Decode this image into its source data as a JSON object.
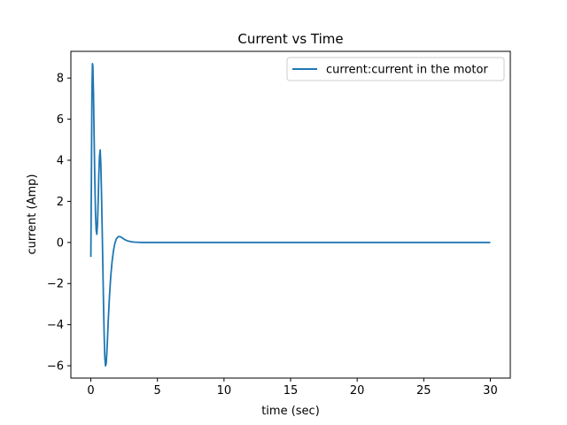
{
  "chart_data": {
    "type": "line",
    "title": "Current vs Time",
    "xlabel": "time (sec)",
    "ylabel": "current (Amp)",
    "xlim": [
      -1.5,
      31.5
    ],
    "ylim": [
      -6.6,
      9.3
    ],
    "xticks": [
      0,
      5,
      10,
      15,
      20,
      25,
      30
    ],
    "yticks": [
      -6,
      -4,
      -2,
      0,
      2,
      4,
      6,
      8
    ],
    "grid": false,
    "legend_position": "top-right",
    "series": [
      {
        "name": "current:current in the motor",
        "color": "#1f77b4",
        "x": [
          0,
          0.04,
          0.08,
          0.12,
          0.15,
          0.2,
          0.25,
          0.3,
          0.35,
          0.4,
          0.45,
          0.5,
          0.55,
          0.6,
          0.65,
          0.7,
          0.75,
          0.8,
          0.85,
          0.9,
          0.95,
          1.0,
          1.05,
          1.1,
          1.15,
          1.2,
          1.25,
          1.3,
          1.4,
          1.5,
          1.6,
          1.7,
          1.8,
          1.9,
          2.0,
          2.1,
          2.2,
          2.3,
          2.4,
          2.5,
          2.6,
          2.8,
          3.0,
          3.2,
          3.5,
          3.8,
          4.2,
          4.6,
          5.0,
          6.0,
          8.0,
          10.0,
          15.0,
          20.0,
          25.0,
          30.0
        ],
        "y": [
          -0.7,
          3.0,
          7.2,
          8.7,
          8.6,
          7.2,
          5.0,
          3.0,
          1.4,
          0.6,
          0.4,
          0.9,
          2.0,
          3.3,
          4.2,
          4.5,
          3.8,
          2.4,
          0.7,
          -1.1,
          -2.9,
          -4.5,
          -5.6,
          -6.0,
          -5.9,
          -5.4,
          -4.7,
          -3.9,
          -2.6,
          -1.6,
          -0.9,
          -0.4,
          -0.05,
          0.15,
          0.25,
          0.29,
          0.28,
          0.25,
          0.2,
          0.16,
          0.12,
          0.07,
          0.04,
          0.02,
          0.01,
          0.0,
          0.0,
          0.0,
          0.0,
          0.0,
          0.0,
          0.0,
          0.0,
          0.0,
          0.0,
          0.0
        ]
      }
    ]
  }
}
